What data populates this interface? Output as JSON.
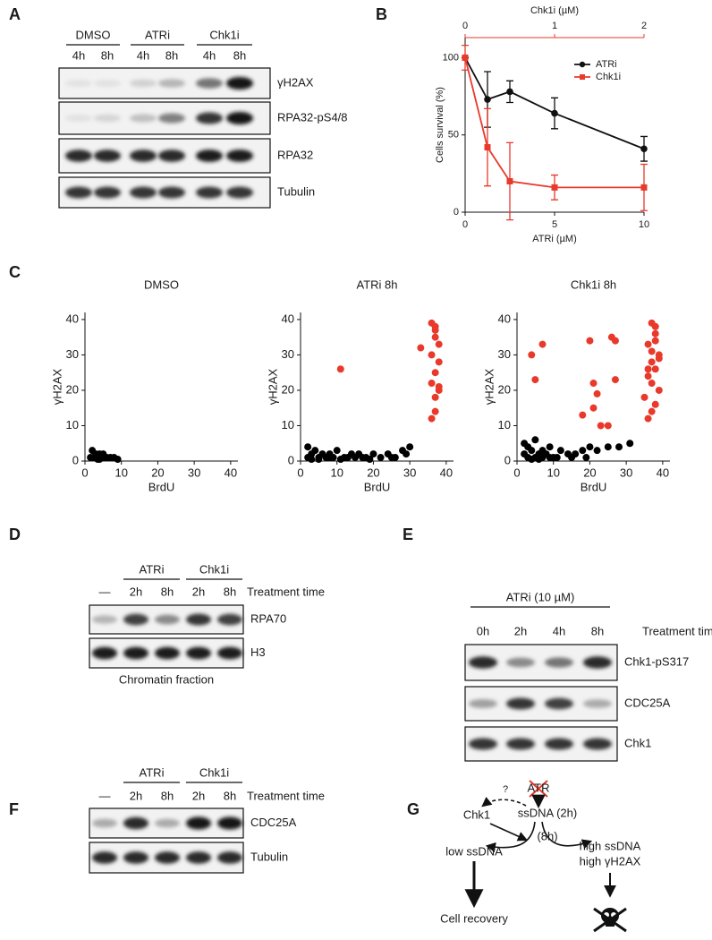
{
  "panel_labels": [
    "A",
    "B",
    "C",
    "D",
    "E",
    "F",
    "G"
  ],
  "chart_data": [
    {
      "type": "line",
      "xlabel": "ATRi (µM)",
      "x2label": "Chk1i (µM)",
      "ylabel": "Cells survival (%)",
      "xlim": [
        0,
        10
      ],
      "xticks": [
        0,
        5,
        10
      ],
      "x2lim": [
        0,
        2
      ],
      "x2ticks": [
        0,
        1,
        2
      ],
      "ylim": [
        0,
        113
      ],
      "yticks": [
        0,
        50,
        100
      ],
      "legend": "upper right",
      "series": [
        {
          "name": "ATRi",
          "color": "#111111",
          "marker": "circle",
          "x": [
            0,
            1.25,
            2.5,
            5,
            10
          ],
          "values": [
            100,
            73,
            78,
            64,
            41
          ],
          "errors": [
            0,
            18,
            7,
            10,
            8
          ]
        },
        {
          "name": "Chk1i",
          "color": "#e8392b",
          "marker": "square",
          "axis": "x2",
          "x": [
            0,
            0.25,
            0.5,
            1,
            2
          ],
          "values": [
            100,
            42,
            20,
            16,
            16
          ],
          "errors": [
            8,
            25,
            25,
            8,
            15
          ]
        }
      ]
    },
    {
      "type": "scatter",
      "title": "DMSO",
      "xlabel": "BrdU",
      "ylabel": "γH2AX",
      "xlim": [
        0,
        42
      ],
      "xticks": [
        0,
        10,
        20,
        30,
        40
      ],
      "ylim": [
        0,
        42
      ],
      "yticks": [
        0,
        10,
        20,
        30,
        40
      ],
      "series": [
        {
          "color": "#000000",
          "x": [
            2,
            3,
            2.5,
            4,
            5,
            3,
            6,
            7,
            8,
            4,
            5,
            9,
            1.5,
            3.5
          ],
          "values": [
            3,
            2,
            1,
            2,
            1,
            1.5,
            1,
            1,
            1,
            0.5,
            2,
            0.5,
            1,
            0.5
          ]
        }
      ]
    },
    {
      "type": "scatter",
      "title": "ATRi 8h",
      "xlabel": "BrdU",
      "ylabel": "γH2AX",
      "xlim": [
        0,
        42
      ],
      "xticks": [
        0,
        10,
        20,
        30,
        40
      ],
      "ylim": [
        0,
        42
      ],
      "yticks": [
        0,
        10,
        20,
        30,
        40
      ],
      "series": [
        {
          "color": "#000000",
          "x": [
            2,
            3,
            4,
            5,
            6,
            7,
            8,
            9,
            10,
            12,
            14,
            15,
            16,
            18,
            20,
            22,
            24,
            26,
            28,
            30,
            3,
            5,
            8,
            11,
            13,
            17,
            19,
            25,
            29,
            2
          ],
          "values": [
            4,
            2,
            3,
            1,
            2,
            1,
            2,
            1,
            3,
            1,
            2,
            1,
            2,
            1,
            2,
            1,
            2,
            1,
            3,
            4,
            0.5,
            0.5,
            1,
            0.5,
            1,
            1,
            0.5,
            1,
            2,
            1
          ]
        },
        {
          "color": "#e8392b",
          "x": [
            11,
            33,
            36,
            37,
            37,
            38,
            36,
            38,
            37,
            36,
            38,
            37,
            37,
            36,
            38,
            37
          ],
          "values": [
            26,
            32,
            39,
            38,
            35,
            33,
            30,
            28,
            25,
            22,
            21,
            18,
            14,
            12,
            20,
            37
          ]
        }
      ]
    },
    {
      "type": "scatter",
      "title": "Chk1i 8h",
      "xlabel": "BrdU",
      "ylabel": "γH2AX",
      "xlim": [
        0,
        42
      ],
      "xticks": [
        0,
        10,
        20,
        30,
        40
      ],
      "ylim": [
        0,
        42
      ],
      "yticks": [
        0,
        10,
        20,
        30,
        40
      ],
      "series": [
        {
          "color": "#000000",
          "x": [
            2,
            3,
            4,
            5,
            6,
            7,
            8,
            9,
            10,
            12,
            14,
            16,
            18,
            20,
            22,
            25,
            28,
            31,
            3,
            5,
            7,
            9,
            11,
            15,
            19,
            2,
            4,
            6
          ],
          "values": [
            5,
            4,
            3,
            6,
            2,
            3,
            2,
            4,
            1,
            3,
            2,
            2,
            3,
            4,
            3,
            4,
            4,
            5,
            1,
            1,
            1,
            1,
            1,
            1,
            1,
            2,
            0.5,
            0.5
          ]
        },
        {
          "color": "#e8392b",
          "x": [
            4,
            5,
            7,
            20,
            21,
            22,
            26,
            27,
            23,
            25,
            37,
            38,
            38,
            36,
            39,
            37,
            38,
            36,
            37,
            39,
            35,
            38,
            37,
            36,
            38,
            37,
            39,
            36,
            21,
            18,
            27
          ],
          "values": [
            30,
            23,
            33,
            34,
            22,
            19,
            35,
            34,
            10,
            10,
            39,
            38,
            36,
            33,
            30,
            28,
            26,
            24,
            22,
            20,
            18,
            16,
            14,
            12,
            34,
            31,
            29,
            26,
            15,
            13,
            23
          ]
        }
      ]
    }
  ],
  "blot_a": {
    "groups": [
      "DMSO",
      "ATRi",
      "Chk1i"
    ],
    "lanes": [
      "4h",
      "8h",
      "4h",
      "8h",
      "4h",
      "8h"
    ],
    "rows": [
      "γH2AX",
      "RPA32-pS4/8",
      "RPA32",
      "Tubulin"
    ]
  },
  "blot_d": {
    "groups": [
      "ATRi",
      "Chk1i"
    ],
    "lanes": [
      "—",
      "2h",
      "8h",
      "2h",
      "8h"
    ],
    "axis_label": "Treatment time",
    "rows": [
      "RPA70",
      "H3"
    ],
    "caption": "Chromatin fraction"
  },
  "blot_e": {
    "groups": [
      "ATRi (10 µM)"
    ],
    "lanes": [
      "0h",
      "2h",
      "4h",
      "8h"
    ],
    "axis_label": "Treatment time",
    "rows": [
      "Chk1-pS317",
      "CDC25A",
      "Chk1"
    ]
  },
  "blot_f": {
    "groups": [
      "ATRi",
      "Chk1i"
    ],
    "lanes": [
      "—",
      "2h",
      "8h",
      "2h",
      "8h"
    ],
    "axis_label": "Treatment time",
    "rows": [
      "CDC25A",
      "Tubulin"
    ]
  },
  "diagram_g": {
    "atr": "ATR",
    "question": "?",
    "chk1": "Chk1",
    "ssdna": "ssDNA (2h)",
    "later": "(8h)",
    "low": "low ssDNA",
    "high1": "high ssDNA",
    "high2": "high γH2AX",
    "recovery": "Cell recovery"
  }
}
